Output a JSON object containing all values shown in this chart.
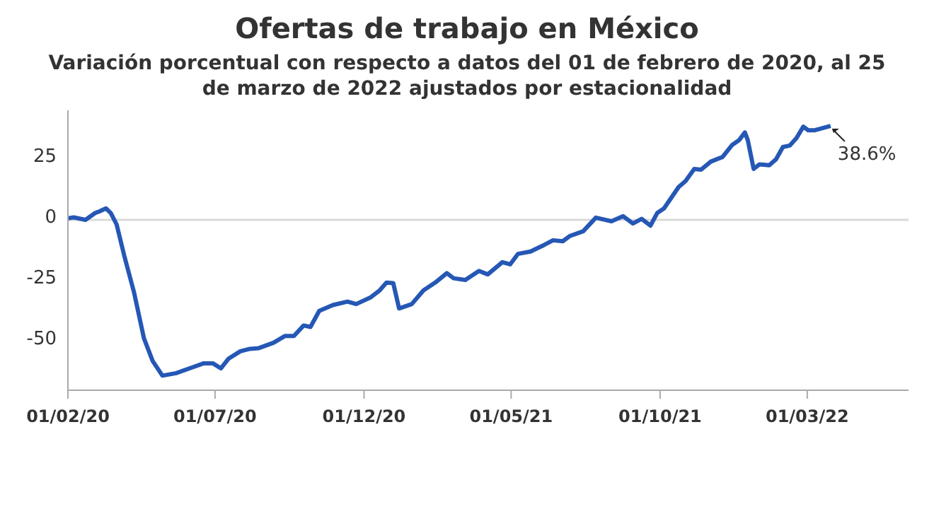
{
  "chart_data": {
    "type": "line",
    "title": "Ofertas de trabajo en México",
    "subtitle": "Variación porcentual con respecto a datos del 01 de febrero de 2020, al 25 de marzo de 2022 ajustados por estacionalidad",
    "x": [
      "2020-02-01",
      "2020-02-07",
      "2020-02-19",
      "2020-02-29",
      "2020-03-04",
      "2020-03-11",
      "2020-03-16",
      "2020-03-22",
      "2020-03-30",
      "2020-04-09",
      "2020-04-19",
      "2020-04-28",
      "2020-05-08",
      "2020-05-22",
      "2020-06-05",
      "2020-06-19",
      "2020-06-29",
      "2020-07-07",
      "2020-07-15",
      "2020-07-27",
      "2020-08-06",
      "2020-08-15",
      "2020-08-30",
      "2020-09-11",
      "2020-09-20",
      "2020-09-30",
      "2020-10-07",
      "2020-10-16",
      "2020-10-30",
      "2020-11-14",
      "2020-11-23",
      "2020-12-08",
      "2020-12-17",
      "2020-12-24",
      "2020-12-31",
      "2021-01-06",
      "2021-01-19",
      "2021-01-31",
      "2021-02-12",
      "2021-02-24",
      "2021-03-03",
      "2021-03-15",
      "2021-03-29",
      "2021-04-07",
      "2021-04-22",
      "2021-04-30",
      "2021-05-08",
      "2021-05-21",
      "2021-06-04",
      "2021-06-13",
      "2021-06-23",
      "2021-06-30",
      "2021-07-14",
      "2021-07-27",
      "2021-08-12",
      "2021-08-24",
      "2021-09-03",
      "2021-09-12",
      "2021-09-21",
      "2021-09-28",
      "2021-10-05",
      "2021-10-20",
      "2021-10-27",
      "2021-11-05",
      "2021-11-12",
      "2021-11-22",
      "2021-12-04",
      "2021-12-14",
      "2021-12-21",
      "2021-12-27",
      "2021-12-30",
      "2022-01-05",
      "2022-01-11",
      "2022-01-21",
      "2022-01-28",
      "2022-02-04",
      "2022-02-11",
      "2022-02-18",
      "2022-02-25",
      "2022-03-02",
      "2022-03-09",
      "2022-03-25"
    ],
    "series": [
      {
        "color": "#2557b5",
        "values": [
          0.6,
          1,
          0,
          2.8,
          3.4,
          4.7,
          2.8,
          -1.9,
          -15,
          -30,
          -48.6,
          -58,
          -64,
          -63,
          -61,
          -59,
          -59,
          -61,
          -57,
          -54,
          -53,
          -52.7,
          -50.5,
          -47.7,
          -47.7,
          -43.4,
          -44,
          -37.4,
          -35,
          -33.6,
          -34.6,
          -31.8,
          -29,
          -25.8,
          -26,
          -36.4,
          -34.6,
          -29,
          -25.8,
          -21.9,
          -24,
          -24.7,
          -21,
          -22.4,
          -17.4,
          -18.3,
          -14,
          -13,
          -10.3,
          -8.4,
          -8.8,
          -6.7,
          -4.7,
          0.9,
          -0.6,
          1.5,
          -1.5,
          0.4,
          -2.4,
          2.8,
          4.7,
          13.5,
          15.9,
          20.9,
          20.6,
          23.9,
          25.8,
          30.8,
          32.7,
          35.9,
          32.7,
          20.9,
          22.8,
          22.4,
          24.9,
          29.9,
          30.5,
          33.6,
          38.3,
          36.8,
          36.8,
          38.6
        ]
      }
    ],
    "xlim": [
      "2020-02-01",
      "2022-06-13"
    ],
    "xticks": [
      {
        "value": "2020-02-01",
        "label": "01/02/20"
      },
      {
        "value": "2020-07-01",
        "label": "01/07/20"
      },
      {
        "value": "2020-12-01",
        "label": "01/12/20"
      },
      {
        "value": "2021-05-01",
        "label": "01/05/21"
      },
      {
        "value": "2021-10-01",
        "label": "01/10/21"
      },
      {
        "value": "2022-03-01",
        "label": "01/03/22"
      }
    ],
    "ylim": [
      -70,
      45
    ],
    "yticks": [
      {
        "value": -50,
        "label": "-50"
      },
      {
        "value": -25,
        "label": "-25"
      },
      0,
      25
    ],
    "ref_lines": [
      {
        "axis": "y",
        "value": 0,
        "color": "#d9d9d9"
      }
    ],
    "annotations": [
      {
        "text": "38.6%",
        "x": "2022-03-25",
        "y": 38.6
      }
    ],
    "grid": false,
    "marker": "none",
    "line_style": "solid"
  }
}
